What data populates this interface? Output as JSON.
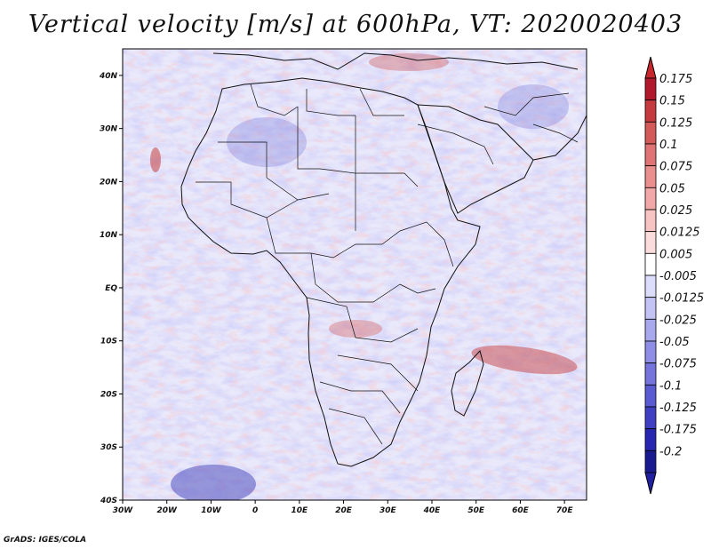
{
  "title": "Vertical velocity [m/s] at 600hPa, VT: 2020020403",
  "footer": "GrADS: IGES/COLA",
  "map": {
    "lon_range": [
      -30,
      75
    ],
    "lat_range": [
      -40,
      45
    ],
    "lat_ticks": [
      {
        "value": 40,
        "label": "40N"
      },
      {
        "value": 30,
        "label": "30N"
      },
      {
        "value": 20,
        "label": "20N"
      },
      {
        "value": 10,
        "label": "10N"
      },
      {
        "value": 0,
        "label": "EQ"
      },
      {
        "value": -10,
        "label": "10S"
      },
      {
        "value": -20,
        "label": "20S"
      },
      {
        "value": -30,
        "label": "30S"
      },
      {
        "value": -40,
        "label": "40S"
      }
    ],
    "lon_ticks": [
      {
        "value": -30,
        "label": "30W"
      },
      {
        "value": -20,
        "label": "20W"
      },
      {
        "value": -10,
        "label": "10W"
      },
      {
        "value": 0,
        "label": "0"
      },
      {
        "value": 10,
        "label": "10E"
      },
      {
        "value": 20,
        "label": "20E"
      },
      {
        "value": 30,
        "label": "30E"
      },
      {
        "value": 40,
        "label": "40E"
      },
      {
        "value": 50,
        "label": "50E"
      },
      {
        "value": 60,
        "label": "60E"
      },
      {
        "value": 70,
        "label": "70E"
      }
    ]
  },
  "colorbar": {
    "levels": [
      {
        "label": "0.175",
        "color": "#b2182b"
      },
      {
        "label": "0.15",
        "color": "#c43a3f"
      },
      {
        "label": "0.125",
        "color": "#d45a5a"
      },
      {
        "label": "0.1",
        "color": "#e07474"
      },
      {
        "label": "0.075",
        "color": "#ea8e8e"
      },
      {
        "label": "0.05",
        "color": "#f2a8a8"
      },
      {
        "label": "0.025",
        "color": "#f7c3c3"
      },
      {
        "label": "0.0125",
        "color": "#fbdcdc"
      },
      {
        "label": "0.005",
        "color": "#ffffff"
      },
      {
        "label": "-0.005",
        "color": "#dcdcfb"
      },
      {
        "label": "-0.0125",
        "color": "#c3c3f5"
      },
      {
        "label": "-0.025",
        "color": "#a8a8ee"
      },
      {
        "label": "-0.05",
        "color": "#8e8ee6"
      },
      {
        "label": "-0.075",
        "color": "#7474dc"
      },
      {
        "label": "-0.1",
        "color": "#5a5ad2"
      },
      {
        "label": "-0.125",
        "color": "#3f3fc4"
      },
      {
        "label": "-0.175",
        "color": "#2626b0"
      },
      {
        "label": "-0.2",
        "color": "#1a1a90"
      }
    ],
    "top_color": "#c8282d",
    "bottom_color": "#2020a0"
  }
}
